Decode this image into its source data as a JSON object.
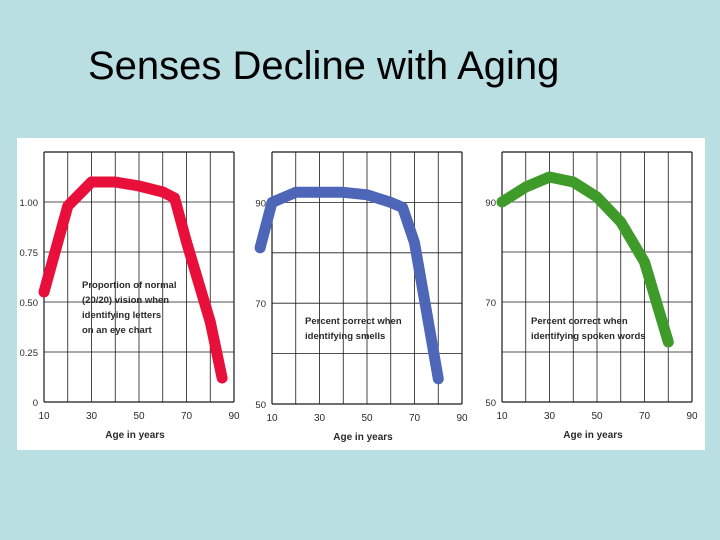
{
  "slide": {
    "title": "Senses Decline with Aging"
  },
  "colors": {
    "background": "#b9dfe3",
    "grid": "#1a1a1a",
    "text": "#2a2a2a",
    "vision": "#e8103a",
    "smell": "#4d66b8",
    "hearing": "#3e9b2a"
  },
  "chart_data": [
    {
      "type": "line",
      "series_color_key": "vision",
      "x": [
        10,
        20,
        30,
        40,
        50,
        60,
        65,
        70,
        80,
        85
      ],
      "y": [
        0.55,
        0.98,
        1.1,
        1.1,
        1.08,
        1.05,
        1.02,
        0.8,
        0.4,
        0.12
      ],
      "xlabel": "Age in years",
      "x_ticks": [
        "10",
        "30",
        "50",
        "70",
        "90"
      ],
      "y_ticks": [
        "0",
        "0.25",
        "0.50",
        "0.75",
        "1.00"
      ],
      "xlim": [
        10,
        90
      ],
      "ylim": [
        0,
        1.25
      ],
      "annotation": [
        "Proportion of normal",
        "(20/20) vision when",
        "identifying letters",
        "on an eye chart"
      ],
      "grid": true
    },
    {
      "type": "line",
      "series_color_key": "smell",
      "x": [
        5,
        10,
        20,
        30,
        40,
        50,
        60,
        65,
        70,
        80
      ],
      "y": [
        81,
        90,
        92,
        92,
        92,
        91.5,
        90,
        89,
        82,
        55
      ],
      "xlabel": "Age in years",
      "x_ticks": [
        "10",
        "30",
        "50",
        "70",
        "90"
      ],
      "y_ticks": [
        "50",
        "70",
        "90"
      ],
      "xlim": [
        10,
        90
      ],
      "ylim": [
        50,
        100
      ],
      "annotation": [
        "Percent correct when",
        "identifying smells"
      ],
      "grid": true
    },
    {
      "type": "line",
      "series_color_key": "hearing",
      "x": [
        10,
        20,
        30,
        40,
        50,
        60,
        70,
        80
      ],
      "y": [
        90,
        93,
        95,
        94,
        91,
        86,
        78,
        62
      ],
      "xlabel": "Age in years",
      "x_ticks": [
        "10",
        "30",
        "50",
        "70",
        "90"
      ],
      "y_ticks": [
        "50",
        "70",
        "90"
      ],
      "xlim": [
        10,
        90
      ],
      "ylim": [
        50,
        100
      ],
      "annotation": [
        "Percent correct when",
        "identifying spoken words"
      ],
      "grid": true
    }
  ]
}
